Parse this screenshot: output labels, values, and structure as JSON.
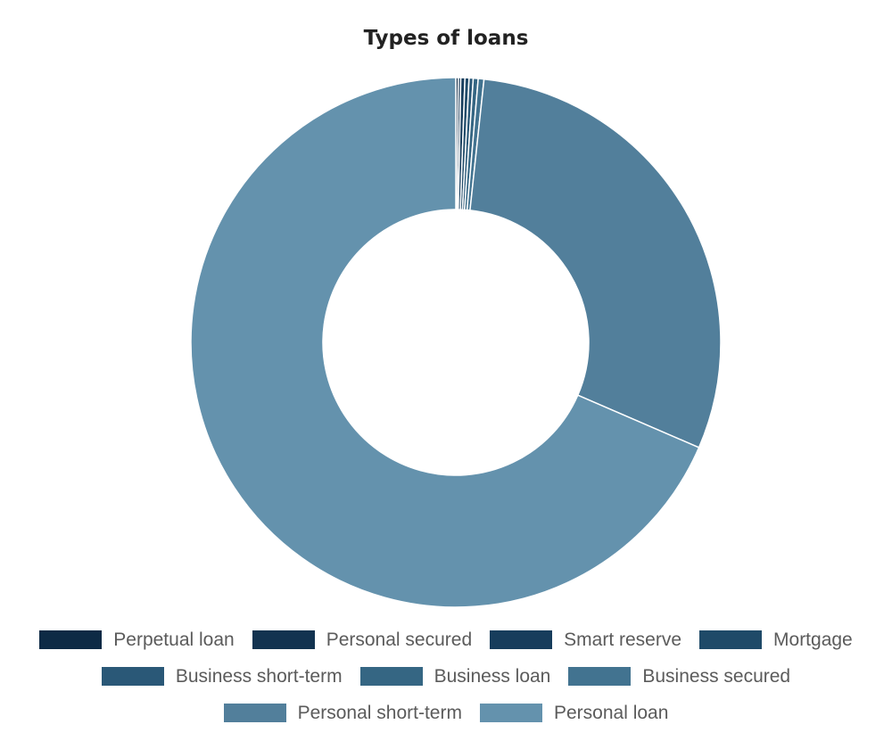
{
  "chart_data": {
    "type": "pie",
    "variant": "donut",
    "title": "Types of loans",
    "legend_position": "bottom",
    "series": [
      {
        "name": "Perpetual loan",
        "value": 0.15,
        "color": "#0d2a45"
      },
      {
        "name": "Personal secured",
        "value": 0.15,
        "color": "#123350"
      },
      {
        "name": "Smart reserve",
        "value": 0.25,
        "color": "#173d5c"
      },
      {
        "name": "Mortgage",
        "value": 0.25,
        "color": "#1f4a68"
      },
      {
        "name": "Business short-term",
        "value": 0.25,
        "color": "#2a5877"
      },
      {
        "name": "Business loan",
        "value": 0.3,
        "color": "#356683"
      },
      {
        "name": "Business secured",
        "value": 0.35,
        "color": "#427390"
      },
      {
        "name": "Personal short-term",
        "value": 29.8,
        "color": "#527f9b"
      },
      {
        "name": "Personal loan",
        "value": 68.5,
        "color": "#6492ad"
      }
    ]
  }
}
